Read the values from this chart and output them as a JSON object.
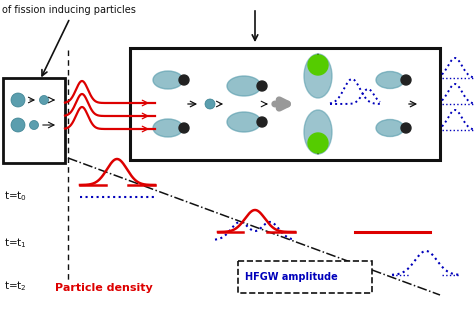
{
  "bg_color": "#ffffff",
  "red_color": "#dd0000",
  "blue_color": "#0000bb",
  "black_color": "#111111",
  "green_color": "#55cc00",
  "teal_color": "#5b9eae",
  "gray_color": "#999999",
  "text_fission": "of fission inducing particles",
  "label_particle": "Particle density",
  "label_hfgw": "HFGW amplitude",
  "figsize": [
    4.74,
    3.11
  ],
  "dpi": 100
}
